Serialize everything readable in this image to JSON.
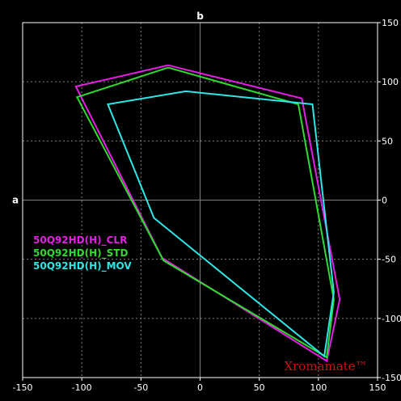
{
  "chart_data": {
    "type": "line",
    "xlabel": "a",
    "ylabel": "b",
    "xlim": [
      -150,
      150
    ],
    "ylim": [
      -150,
      150
    ],
    "xticks": [
      -150,
      -100,
      -50,
      0,
      50,
      100,
      150
    ],
    "yticks": [
      150,
      100,
      50,
      0,
      -50,
      -100,
      -150
    ],
    "grid": true,
    "legend_position": "left",
    "series": [
      {
        "name": "50Q92HD(H)_CLR",
        "color": "#e61ee6",
        "points": [
          [
            -27,
            114
          ],
          [
            86,
            86
          ],
          [
            118,
            -84
          ],
          [
            107,
            -136
          ],
          [
            -32,
            -49
          ],
          [
            -105,
            96
          ],
          [
            -27,
            114
          ]
        ]
      },
      {
        "name": "50Q92HD(H)_STD",
        "color": "#2edb2e",
        "points": [
          [
            -27,
            112
          ],
          [
            83,
            81
          ],
          [
            113,
            -84
          ],
          [
            107,
            -133
          ],
          [
            -31,
            -51
          ],
          [
            -104,
            87
          ],
          [
            -27,
            112
          ]
        ]
      },
      {
        "name": "50Q92HD(H)_MOV",
        "color": "#2ee6e6",
        "points": [
          [
            -12,
            92
          ],
          [
            95,
            81
          ],
          [
            113,
            -78
          ],
          [
            105,
            -132
          ],
          [
            -39,
            -15
          ],
          [
            -78,
            81
          ],
          [
            -12,
            92
          ]
        ]
      }
    ]
  },
  "watermark": {
    "text": "Xromamate™",
    "color": "#cc1111"
  },
  "colors": {
    "background": "#000000",
    "frame": "#ffffff",
    "grid": "#808080"
  }
}
